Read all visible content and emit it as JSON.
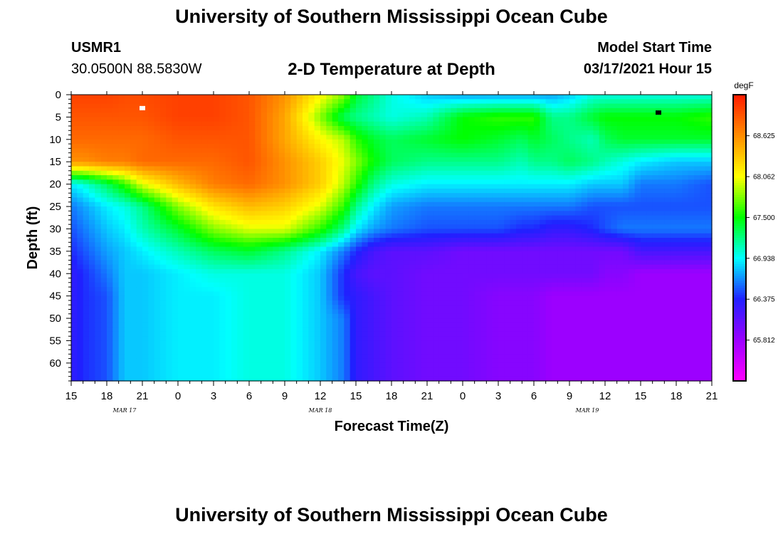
{
  "header": {
    "title": "University of Southern Mississippi Ocean Cube",
    "station": "USMR1",
    "coords": "30.0500N 88.5830W",
    "subtitle": "2-D Temperature at Depth",
    "model_start_label": "Model Start Time",
    "model_start_value": "03/17/2021 Hour 15"
  },
  "footer": {
    "title": "University of Southern Mississippi Ocean Cube"
  },
  "chart_data": {
    "type": "heatmap",
    "xlabel": "Forecast Time(Z)",
    "ylabel": "Depth (ft)",
    "x_tick_labels": [
      "15",
      "18",
      "21",
      "0",
      "3",
      "6",
      "9",
      "12",
      "15",
      "18",
      "21",
      "0",
      "3",
      "6",
      "9",
      "12",
      "15",
      "18",
      "21"
    ],
    "date_labels": [
      {
        "label": "MAR 17",
        "hour_offset": 4.5
      },
      {
        "label": "MAR 18",
        "hour_offset": 21
      },
      {
        "label": "MAR 19",
        "hour_offset": 43.5
      }
    ],
    "xlim_hours": [
      0,
      54
    ],
    "y_ticks": [
      0,
      5,
      10,
      15,
      20,
      25,
      30,
      35,
      40,
      45,
      50,
      55,
      60
    ],
    "ylim_ft": [
      0,
      64
    ],
    "y_inverted": true,
    "colorbar": {
      "unit": "degF",
      "tick_labels": [
        "68.625",
        "68.062",
        "67.500",
        "66.938",
        "66.375",
        "65.812"
      ],
      "tick_values": [
        68.625,
        68.062,
        67.5,
        66.938,
        66.375,
        65.812
      ],
      "range": [
        65.25,
        69.19
      ],
      "colors": [
        "#ff00ff",
        "#9a00ff",
        "#2020ff",
        "#00ffff",
        "#00ff00",
        "#ffff00",
        "#ff8c00",
        "#ff1a00"
      ]
    },
    "temperature_by_depth": {
      "hours": [
        0,
        1,
        3,
        4.5,
        6,
        9,
        12,
        15,
        18,
        21,
        23,
        24,
        25.5,
        27,
        30,
        33,
        36,
        38,
        39,
        40.5,
        42,
        44,
        45,
        46.5,
        48,
        51,
        54
      ],
      "depths": [
        0,
        5,
        10,
        15,
        20,
        25,
        30,
        35,
        40,
        45,
        50,
        55,
        60,
        64
      ],
      "values": [
        [
          69.0,
          69.0,
          69.0,
          68.95,
          68.95,
          69.0,
          69.0,
          68.9,
          68.6,
          68.1,
          67.8,
          67.4,
          67.2,
          67.0,
          66.8,
          66.7,
          66.7,
          66.7,
          66.7,
          66.7,
          66.8,
          67.0,
          67.0,
          67.0,
          67.0,
          67.0,
          67.0
        ],
        [
          68.9,
          68.9,
          68.9,
          68.9,
          68.9,
          69.0,
          69.0,
          68.9,
          68.5,
          67.8,
          67.3,
          67.2,
          67.1,
          67.0,
          67.1,
          67.5,
          67.6,
          67.6,
          67.6,
          67.2,
          67.2,
          67.4,
          67.5,
          67.5,
          67.5,
          67.5,
          67.6
        ],
        [
          68.8,
          68.8,
          68.8,
          68.8,
          68.8,
          68.9,
          68.9,
          68.9,
          68.5,
          68.1,
          67.9,
          67.6,
          67.4,
          67.3,
          67.4,
          67.5,
          67.4,
          67.3,
          67.4,
          67.3,
          67.2,
          67.1,
          67.3,
          67.4,
          67.4,
          67.4,
          67.4
        ],
        [
          68.6,
          68.6,
          68.7,
          68.7,
          68.8,
          68.8,
          68.8,
          68.9,
          68.6,
          68.3,
          68.0,
          67.8,
          67.5,
          67.3,
          67.2,
          67.2,
          67.2,
          67.1,
          67.2,
          67.2,
          67.3,
          67.2,
          67.1,
          67.0,
          66.9,
          66.8,
          66.8
        ],
        [
          66.9,
          67.0,
          67.3,
          67.6,
          68.0,
          68.4,
          68.7,
          68.8,
          68.6,
          68.3,
          67.9,
          67.6,
          67.2,
          67.0,
          66.9,
          66.9,
          66.9,
          66.9,
          66.9,
          66.9,
          66.9,
          66.8,
          66.8,
          66.8,
          66.6,
          66.6,
          66.5
        ],
        [
          66.6,
          66.7,
          66.9,
          67.0,
          67.2,
          67.8,
          68.2,
          68.4,
          68.3,
          68.0,
          67.6,
          67.2,
          66.9,
          66.7,
          66.6,
          66.6,
          66.6,
          66.6,
          66.6,
          66.6,
          66.6,
          66.5,
          66.5,
          66.5,
          66.5,
          66.5,
          66.5
        ],
        [
          66.5,
          66.6,
          66.8,
          66.9,
          67.1,
          67.4,
          67.8,
          68.0,
          68.0,
          67.6,
          67.2,
          66.9,
          66.7,
          66.6,
          66.5,
          66.5,
          66.5,
          66.4,
          66.4,
          66.3,
          66.3,
          66.4,
          66.5,
          66.6,
          66.6,
          66.6,
          66.6
        ],
        [
          66.4,
          66.5,
          66.7,
          66.8,
          66.9,
          67.1,
          67.3,
          67.4,
          67.2,
          66.9,
          66.6,
          66.4,
          66.2,
          66.1,
          66.1,
          66.0,
          66.0,
          66.0,
          66.0,
          66.0,
          66.0,
          66.0,
          66.0,
          66.0,
          66.2,
          66.2,
          66.2
        ],
        [
          66.3,
          66.4,
          66.6,
          66.8,
          66.8,
          66.9,
          67.0,
          67.0,
          67.0,
          66.8,
          66.4,
          66.2,
          66.1,
          66.1,
          66.0,
          66.0,
          66.0,
          66.0,
          66.0,
          66.0,
          66.0,
          66.0,
          65.9,
          65.9,
          65.8,
          65.8,
          65.8
        ],
        [
          66.3,
          66.4,
          66.5,
          66.8,
          66.8,
          66.9,
          66.9,
          67.0,
          67.0,
          66.8,
          66.4,
          66.3,
          66.2,
          66.1,
          66.0,
          66.0,
          65.9,
          65.9,
          65.9,
          65.8,
          65.8,
          65.8,
          65.8,
          65.8,
          65.8,
          65.8,
          65.8
        ],
        [
          66.3,
          66.4,
          66.5,
          66.8,
          66.8,
          66.9,
          66.9,
          67.0,
          67.0,
          66.8,
          66.6,
          66.3,
          66.2,
          66.1,
          66.0,
          66.0,
          65.9,
          65.9,
          65.9,
          65.8,
          65.8,
          65.8,
          65.8,
          65.8,
          65.8,
          65.8,
          65.8
        ],
        [
          66.3,
          66.4,
          66.5,
          66.8,
          66.8,
          66.9,
          66.9,
          67.0,
          67.0,
          66.8,
          66.6,
          66.3,
          66.2,
          66.1,
          66.0,
          66.0,
          65.9,
          65.9,
          65.9,
          65.8,
          65.8,
          65.8,
          65.8,
          65.8,
          65.8,
          65.8,
          65.8
        ],
        [
          66.3,
          66.4,
          66.5,
          66.8,
          66.8,
          66.9,
          66.9,
          67.0,
          67.0,
          66.8,
          66.6,
          66.3,
          66.2,
          66.1,
          66.0,
          66.0,
          65.9,
          65.9,
          65.9,
          65.8,
          65.8,
          65.8,
          65.8,
          65.8,
          65.8,
          65.8,
          65.8
        ],
        [
          66.3,
          66.4,
          66.5,
          66.8,
          66.8,
          66.9,
          66.9,
          67.0,
          67.0,
          66.8,
          66.6,
          66.3,
          66.2,
          66.1,
          66.0,
          66.0,
          65.9,
          65.9,
          65.9,
          65.8,
          65.8,
          65.8,
          65.8,
          65.8,
          65.8,
          65.8,
          65.8
        ]
      ]
    },
    "marker_points": [
      {
        "hour": 6,
        "depth_ft": 3,
        "color": "#ffffff"
      },
      {
        "hour": 49.5,
        "depth_ft": 4,
        "color": "#000000"
      }
    ]
  }
}
